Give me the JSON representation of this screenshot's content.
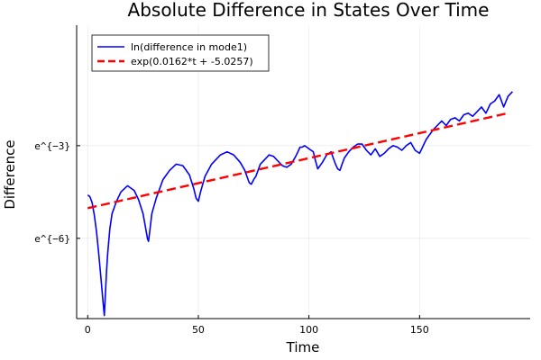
{
  "chart_data": {
    "type": "line",
    "title": "Absolute Difference in States Over Time",
    "xlabel": "Time",
    "ylabel": "Difference",
    "xlim": [
      -5,
      200
    ],
    "ylim": [
      -8.6,
      0.9
    ],
    "yscale": "log (natural), shown as ln values",
    "xticks": [
      {
        "value": 0,
        "label": "0"
      },
      {
        "value": 50,
        "label": "50"
      },
      {
        "value": 100,
        "label": "100"
      },
      {
        "value": 150,
        "label": "150"
      }
    ],
    "yticks": [
      {
        "value": -3,
        "label": "e^{−3}"
      },
      {
        "value": -6,
        "label": "e^{−6}"
      }
    ],
    "grid": true,
    "legend_position": "top-left",
    "series": [
      {
        "name": "ln(difference in mode1)",
        "color": "#0000ff",
        "style": "solid",
        "x": [
          0,
          1,
          2,
          3,
          4,
          5,
          6,
          7,
          7.5,
          8,
          8.5,
          9,
          10,
          11,
          13,
          15,
          18,
          21,
          23,
          25,
          26,
          27,
          27.5,
          28,
          29,
          31,
          34,
          37,
          40,
          43,
          46,
          48,
          49,
          50,
          51,
          53,
          56,
          60,
          63,
          66,
          69,
          71,
          72,
          73,
          74,
          75,
          76,
          77,
          78,
          80,
          82,
          84,
          86,
          88,
          90,
          92,
          94,
          95,
          96,
          97,
          98,
          99,
          100,
          101,
          102,
          103,
          104,
          106,
          108,
          110,
          111,
          112,
          113,
          114,
          115,
          116,
          118,
          120,
          122,
          124,
          126,
          128,
          130,
          132,
          134,
          136,
          138,
          140,
          142,
          144,
          146,
          148,
          150,
          151,
          152,
          153,
          154,
          155,
          156,
          158,
          160,
          162,
          164,
          166,
          168,
          170,
          172,
          174,
          176,
          178,
          180,
          182,
          184,
          186,
          188,
          190,
          192
        ],
        "y": [
          -4.6,
          -4.65,
          -4.85,
          -5.25,
          -5.8,
          -6.5,
          -7.3,
          -8.1,
          -8.5,
          -7.8,
          -7.1,
          -6.5,
          -5.7,
          -5.2,
          -4.8,
          -4.5,
          -4.3,
          -4.45,
          -4.75,
          -5.2,
          -5.6,
          -6.0,
          -6.1,
          -5.8,
          -5.2,
          -4.7,
          -4.1,
          -3.8,
          -3.6,
          -3.65,
          -3.95,
          -4.4,
          -4.7,
          -4.8,
          -4.5,
          -4.0,
          -3.6,
          -3.3,
          -3.2,
          -3.3,
          -3.55,
          -3.8,
          -4.0,
          -4.2,
          -4.25,
          -4.1,
          -4.0,
          -3.8,
          -3.6,
          -3.45,
          -3.3,
          -3.35,
          -3.5,
          -3.65,
          -3.7,
          -3.6,
          -3.35,
          -3.2,
          -3.05,
          -3.05,
          -3.0,
          -3.05,
          -3.1,
          -3.15,
          -3.2,
          -3.5,
          -3.75,
          -3.55,
          -3.3,
          -3.2,
          -3.4,
          -3.6,
          -3.75,
          -3.8,
          -3.6,
          -3.4,
          -3.2,
          -3.05,
          -2.95,
          -2.95,
          -3.15,
          -3.3,
          -3.1,
          -3.35,
          -3.25,
          -3.1,
          -3.0,
          -3.05,
          -3.15,
          -3.0,
          -2.9,
          -3.15,
          -3.25,
          -3.1,
          -2.95,
          -2.8,
          -2.7,
          -2.6,
          -2.5,
          -2.35,
          -2.2,
          -2.35,
          -2.15,
          -2.1,
          -2.2,
          -2.0,
          -1.95,
          -2.05,
          -1.9,
          -1.75,
          -1.95,
          -1.65,
          -1.55,
          -1.35,
          -1.75,
          -1.4,
          -1.25
        ]
      },
      {
        "name": "exp(0.0162*t + -5.0257)",
        "color": "#ff0000",
        "style": "dashed",
        "x": [
          0,
          190
        ],
        "y": [
          -5.0257,
          -1.9477
        ]
      }
    ]
  }
}
